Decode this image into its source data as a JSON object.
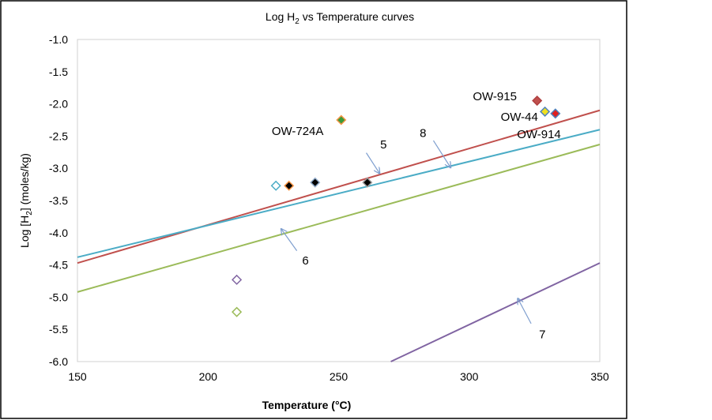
{
  "chart_data": {
    "type": "scatter",
    "title": "Log H",
    "title_sub": "2",
    "title_rest": " vs Temperature curves",
    "xlabel": "Temperature (°C)",
    "ylabel_pre": "Log [H",
    "ylabel_sub": "2",
    "ylabel_post": "] (moles/kg)",
    "xlim": [
      150,
      350
    ],
    "ylim": [
      -6.0,
      -1.0
    ],
    "xticks": [
      "150",
      "200",
      "250",
      "300",
      "350"
    ],
    "xtick_values": [
      150,
      200,
      250,
      300,
      350
    ],
    "yticks": [
      "-1.0",
      "-1.5",
      "-2.0",
      "-2.5",
      "-3.0",
      "-3.5",
      "-4.0",
      "-4.5",
      "-5.0",
      "-5.5",
      "-6.0"
    ],
    "ytick_values": [
      -1.0,
      -1.5,
      -2.0,
      -2.5,
      -3.0,
      -3.5,
      -4.0,
      -4.5,
      -5.0,
      -5.5,
      -6.0
    ],
    "grid": false,
    "lines": [
      {
        "name": "5",
        "color": "#c0504d",
        "x": [
          150,
          350
        ],
        "y": [
          -4.47,
          -2.1
        ]
      },
      {
        "name": "8",
        "color": "#4bacc6",
        "x": [
          150,
          350
        ],
        "y": [
          -4.38,
          -2.4
        ]
      },
      {
        "name": "6",
        "color": "#9bbb59",
        "x": [
          150,
          350
        ],
        "y": [
          -4.92,
          -2.63
        ]
      },
      {
        "name": "7",
        "color": "#8064a2",
        "x": [
          270,
          350
        ],
        "y": [
          -6.0,
          -4.47
        ]
      }
    ],
    "points": [
      {
        "x": 226,
        "y": -3.27,
        "fill": "none",
        "stroke": "#4bacc6"
      },
      {
        "x": 231,
        "y": -3.27,
        "fill": "#000000",
        "stroke": "#f79646"
      },
      {
        "x": 241,
        "y": -3.22,
        "fill": "#000000",
        "stroke": "#8ea9c8"
      },
      {
        "x": 261,
        "y": -3.22,
        "fill": "#000000",
        "stroke": "#999999"
      },
      {
        "x": 251,
        "y": -2.25,
        "fill": "#3a9a3a",
        "stroke": "#f79646"
      },
      {
        "x": 326,
        "y": -1.95,
        "fill": "#c0504d",
        "stroke": "#b04040"
      },
      {
        "x": 329,
        "y": -2.12,
        "fill": "#f0e020",
        "stroke": "#4f81bd"
      },
      {
        "x": 333,
        "y": -2.15,
        "fill": "#e02020",
        "stroke": "#4f81bd"
      },
      {
        "x": 211,
        "y": -4.73,
        "fill": "none",
        "stroke": "#8064a2"
      },
      {
        "x": 211,
        "y": -5.23,
        "fill": "none",
        "stroke": "#9bbb59"
      }
    ],
    "point_labels": [
      {
        "text": "OW-915",
        "x": 309.8,
        "y": -1.88
      },
      {
        "text": "OW-44",
        "x": 319.2,
        "y": -2.2
      },
      {
        "text": "OW-914",
        "x": 326.7,
        "y": -2.47
      },
      {
        "text": "OW-724A",
        "x": 234.3,
        "y": -2.42
      }
    ],
    "annotations": [
      {
        "text": "5",
        "x": 267.2,
        "y": -2.63,
        "arrow_from": [
          260.6,
          -2.76
        ],
        "arrow_to": [
          265.7,
          -3.08
        ]
      },
      {
        "text": "8",
        "x": 282.3,
        "y": -2.45,
        "arrow_from": [
          286.3,
          -2.57
        ],
        "arrow_to": [
          292.9,
          -2.99
        ]
      },
      {
        "text": "6",
        "x": 237.3,
        "y": -4.43,
        "arrow_from": [
          234.0,
          -4.28
        ],
        "arrow_to": [
          228.0,
          -3.94
        ]
      },
      {
        "text": "7",
        "x": 328.0,
        "y": -5.58,
        "arrow_from": [
          323.7,
          -5.41
        ],
        "arrow_to": [
          318.6,
          -5.02
        ]
      }
    ],
    "arrow_color": "#7f9fcf"
  }
}
